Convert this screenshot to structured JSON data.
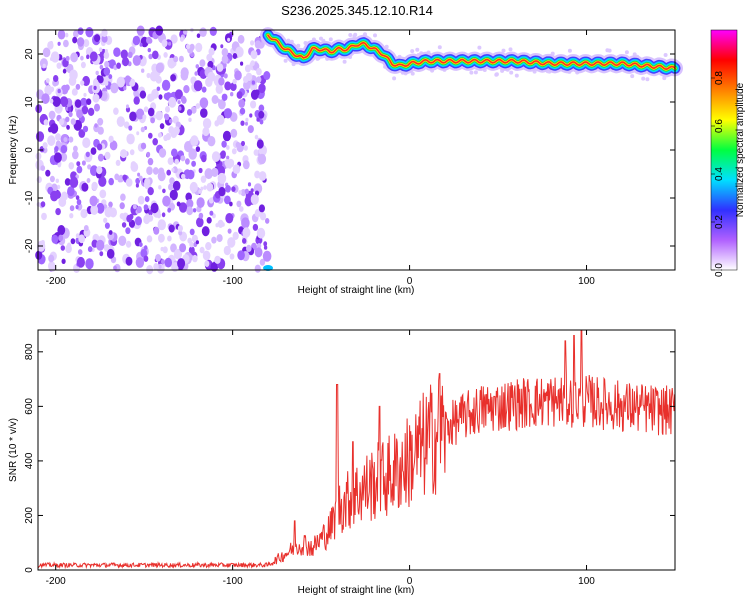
{
  "title": "S236.2025.345.12.10.R14",
  "colors": {
    "scatter": "#8a2be2",
    "snr_line": "#e8302c",
    "frame": "#000000"
  },
  "chart_data": [
    {
      "type": "heatmap",
      "name": "spectrogram",
      "xlabel": "Height of straight line (km)",
      "ylabel": "Frequency (Hz)",
      "xlim": [
        -210,
        150
      ],
      "ylim": [
        -25,
        25
      ],
      "xticks": [
        -200,
        -100,
        0,
        100
      ],
      "yticks": [
        20,
        10,
        0,
        -10,
        -20
      ],
      "colorbar": {
        "label": "Normalized spectral amplitude",
        "range": [
          0.0,
          1.0
        ],
        "ticks": [
          "0.0",
          "0.2",
          "0.4",
          "0.6",
          "0.8"
        ],
        "tick_values": [
          0.0,
          0.2,
          0.4,
          0.6,
          0.8
        ],
        "colormap": [
          "#ffffff",
          "#b060ff",
          "#3030ff",
          "#00e0ff",
          "#00ff40",
          "#ffff00",
          "#ff8000",
          "#ff0000",
          "#ff00ff"
        ]
      },
      "noise_region_x": [
        -210,
        -80
      ],
      "signal_track": {
        "x": [
          -80,
          -75,
          -70,
          -65,
          -60,
          -55,
          -50,
          -45,
          -40,
          -35,
          -30,
          -25,
          -20,
          -15,
          -10,
          -5,
          0,
          10,
          20,
          40,
          60,
          80,
          100,
          120,
          150
        ],
        "y": [
          24,
          22.5,
          21,
          20,
          19,
          21,
          21,
          20.5,
          21,
          21,
          22,
          22,
          21,
          20,
          18,
          17.5,
          18,
          18.5,
          18.5,
          18.5,
          18.5,
          18,
          18,
          18,
          17
        ]
      }
    },
    {
      "type": "line",
      "name": "snr",
      "xlabel": "Height of straight line (km)",
      "ylabel": "SNR (10 * v/v)",
      "xlim": [
        -210,
        150
      ],
      "ylim": [
        0,
        880
      ],
      "xticks": [
        -200,
        -100,
        0,
        100
      ],
      "yticks": [
        0,
        200,
        400,
        600,
        800
      ],
      "profile": {
        "x": [
          -210,
          -80,
          -70,
          -60,
          -55,
          -45,
          -40,
          -30,
          -20,
          -10,
          0,
          10,
          20,
          30,
          40,
          60,
          80,
          100,
          120,
          150
        ],
        "y": [
          18,
          18,
          60,
          100,
          80,
          150,
          230,
          280,
          320,
          350,
          400,
          470,
          520,
          560,
          590,
          610,
          620,
          620,
          600,
          580
        ]
      },
      "spikes": [
        {
          "x": -65,
          "y": 180
        },
        {
          "x": -41,
          "y": 680
        },
        {
          "x": -32,
          "y": 470
        },
        {
          "x": -17,
          "y": 600
        },
        {
          "x": 17,
          "y": 720
        },
        {
          "x": 88,
          "y": 840
        },
        {
          "x": 93,
          "y": 860
        },
        {
          "x": 97,
          "y": 880
        }
      ]
    }
  ]
}
